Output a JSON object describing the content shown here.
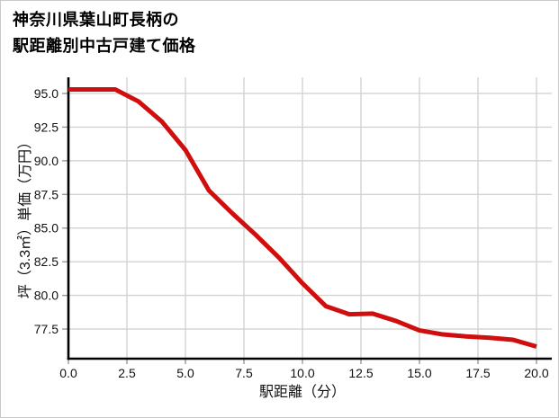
{
  "title": {
    "line1": "神奈川県葉山町長柄の",
    "line2": "駅距離別中古戸建て価格"
  },
  "chart_data": {
    "type": "line",
    "title": "神奈川県葉山町長柄の駅距離別中古戸建て価格",
    "xlabel": "駅距離（分）",
    "ylabel": "坪（3.3㎡）単価（万円）",
    "x": [
      0,
      1,
      2,
      3,
      4,
      5,
      6,
      7,
      8,
      9,
      10,
      11,
      12,
      13,
      14,
      15,
      16,
      17,
      18,
      19,
      20
    ],
    "values": [
      95.3,
      95.3,
      95.3,
      94.4,
      92.9,
      90.8,
      87.8,
      86.1,
      84.5,
      82.8,
      80.9,
      79.2,
      78.6,
      78.65,
      78.1,
      77.4,
      77.1,
      76.95,
      76.85,
      76.7,
      76.2
    ],
    "xlim": [
      0,
      20
    ],
    "ylim": [
      75.3,
      96.2
    ],
    "x_ticks": [
      0,
      2.5,
      5,
      7.5,
      10,
      12.5,
      15,
      17.5,
      20
    ],
    "x_tick_labels": [
      "0.0",
      "2.5",
      "5.0",
      "7.5",
      "10.0",
      "12.5",
      "15.0",
      "17.5",
      "20.0"
    ],
    "y_ticks": [
      77.5,
      80.0,
      82.5,
      85.0,
      87.5,
      90.0,
      92.5,
      95.0
    ],
    "y_tick_labels": [
      "77.5",
      "80.0",
      "82.5",
      "85.0",
      "87.5",
      "90.0",
      "92.5",
      "95.0"
    ],
    "grid": true,
    "legend": "none",
    "line_color": "#d10e0e",
    "grid_color": "#d2d2d2",
    "tick_color": "#999999",
    "axis_color": "#000000",
    "label_color": "#111111"
  }
}
